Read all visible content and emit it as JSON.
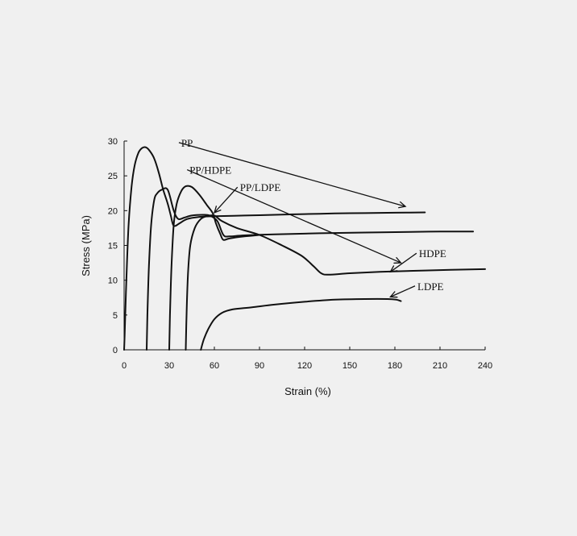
{
  "chart_data": {
    "type": "line",
    "xlabel": "Strain (%)",
    "ylabel": "Stress (MPa)",
    "xlim": [
      0,
      240
    ],
    "ylim": [
      0,
      30
    ],
    "x_ticks": [
      0,
      30,
      60,
      90,
      120,
      150,
      180,
      210,
      240
    ],
    "y_ticks": [
      0,
      5,
      10,
      15,
      20,
      25,
      30
    ],
    "grid": false,
    "line_color": "#111111",
    "series": [
      {
        "name": "PP",
        "points": [
          [
            0,
            0
          ],
          [
            0.5,
            3
          ],
          [
            1.5,
            10
          ],
          [
            3,
            18
          ],
          [
            5,
            23.5
          ],
          [
            7,
            26.5
          ],
          [
            9.5,
            28.3
          ],
          [
            12,
            29
          ],
          [
            14.5,
            29.1
          ],
          [
            17,
            28.6
          ],
          [
            20,
            27.5
          ],
          [
            23,
            25.5
          ],
          [
            26,
            23
          ],
          [
            29,
            21
          ],
          [
            31,
            19.3
          ],
          [
            32.5,
            18
          ],
          [
            34,
            17.8
          ],
          [
            37,
            18.2
          ],
          [
            42,
            18.8
          ],
          [
            50,
            19.1
          ],
          [
            60,
            19.2
          ],
          [
            80,
            19.3
          ],
          [
            100,
            19.4
          ],
          [
            120,
            19.5
          ],
          [
            140,
            19.6
          ],
          [
            160,
            19.65
          ],
          [
            180,
            19.7
          ],
          [
            200,
            19.75
          ]
        ],
        "label_at": [
          187,
          20.6
        ]
      },
      {
        "name": "PP/HDPE",
        "points": [
          [
            15,
            0
          ],
          [
            15.5,
            5
          ],
          [
            16.5,
            12
          ],
          [
            18,
            18
          ],
          [
            20,
            21.5
          ],
          [
            22,
            22.5
          ],
          [
            25,
            23
          ],
          [
            29,
            23
          ],
          [
            33,
            20
          ],
          [
            36,
            18.8
          ],
          [
            40,
            19
          ],
          [
            45,
            19.3
          ],
          [
            52,
            19.4
          ],
          [
            57,
            19.3
          ],
          [
            62,
            18.5
          ],
          [
            66,
            16.5
          ],
          [
            70,
            16.3
          ],
          [
            80,
            16.45
          ],
          [
            100,
            16.6
          ],
          [
            130,
            16.75
          ],
          [
            160,
            16.85
          ],
          [
            190,
            16.95
          ],
          [
            210,
            17
          ],
          [
            232,
            17
          ]
        ],
        "label_at": [
          184,
          12.5
        ]
      },
      {
        "name": "PP/LDPE",
        "points": [
          [
            30,
            0
          ],
          [
            30.5,
            5
          ],
          [
            31.5,
            12
          ],
          [
            33,
            18
          ],
          [
            35,
            21
          ],
          [
            38,
            22.8
          ],
          [
            41,
            23.5
          ],
          [
            45,
            23.4
          ],
          [
            50,
            22.3
          ],
          [
            55,
            20.8
          ],
          [
            59,
            19.6
          ],
          [
            61,
            18.2
          ],
          [
            64,
            16.6
          ],
          [
            66,
            15.8
          ],
          [
            70,
            16
          ],
          [
            80,
            16.3
          ],
          [
            90,
            16.5
          ]
        ],
        "label_at": [
          60,
          19.7
        ]
      },
      {
        "name": "HDPE",
        "points": [
          [
            41,
            0
          ],
          [
            41.5,
            5
          ],
          [
            42.5,
            11
          ],
          [
            44,
            15
          ],
          [
            47,
            17.5
          ],
          [
            51,
            18.8
          ],
          [
            55,
            19.2
          ],
          [
            60,
            19.3
          ],
          [
            65,
            18.5
          ],
          [
            75,
            17.5
          ],
          [
            90,
            16.5
          ],
          [
            105,
            15
          ],
          [
            118,
            13.5
          ],
          [
            126,
            12
          ],
          [
            131,
            11
          ],
          [
            136,
            10.8
          ],
          [
            150,
            11
          ],
          [
            170,
            11.2
          ],
          [
            200,
            11.4
          ],
          [
            240,
            11.6
          ]
        ],
        "label_at": [
          177,
          11.2
        ]
      },
      {
        "name": "LDPE",
        "points": [
          [
            51,
            0
          ],
          [
            53,
            1.5
          ],
          [
            56,
            3
          ],
          [
            60,
            4.4
          ],
          [
            65,
            5.3
          ],
          [
            72,
            5.8
          ],
          [
            85,
            6.1
          ],
          [
            100,
            6.5
          ],
          [
            120,
            6.9
          ],
          [
            140,
            7.2
          ],
          [
            160,
            7.3
          ],
          [
            175,
            7.3
          ],
          [
            181,
            7.2
          ],
          [
            184,
            7.0
          ]
        ],
        "label_at": [
          177,
          7.6
        ]
      }
    ],
    "annotations": [
      {
        "text": "PP",
        "x": 38,
        "y": 29.2
      },
      {
        "text": "PP/HDPE",
        "x": 43.5,
        "y": 25.3
      },
      {
        "text": "PP/LDPE",
        "x": 77,
        "y": 22.8
      },
      {
        "text": "HDPE",
        "x": 196,
        "y": 13.3
      },
      {
        "text": "LDPE",
        "x": 195,
        "y": 8.6
      }
    ]
  }
}
